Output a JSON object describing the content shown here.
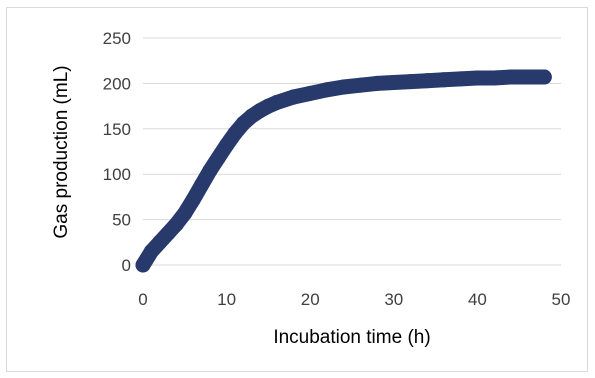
{
  "chart_data": {
    "type": "line",
    "title": "",
    "xlabel": "Incubation time (h)",
    "ylabel": "Gas production (mL)",
    "xlim": [
      0,
      50
    ],
    "ylim": [
      0,
      250
    ],
    "x_ticks": [
      "0",
      "10",
      "20",
      "30",
      "40",
      "50"
    ],
    "y_ticks": [
      "0",
      "50",
      "100",
      "150",
      "200",
      "250"
    ],
    "grid": "horizontal",
    "legend": "none",
    "series": [
      {
        "color": "#283a6b",
        "x": [
          0,
          1,
          2,
          3,
          4,
          5,
          6,
          7,
          8,
          9,
          10,
          11,
          12,
          13,
          14,
          15,
          16,
          18,
          20,
          22,
          24,
          26,
          28,
          30,
          32,
          34,
          36,
          38,
          40,
          42,
          44,
          46,
          48
        ],
        "y": [
          0,
          15,
          25,
          35,
          45,
          57,
          72,
          88,
          104,
          118,
          132,
          145,
          156,
          164,
          170,
          175,
          179,
          185,
          189,
          193,
          196,
          198,
          200,
          201,
          202,
          203,
          204,
          205,
          206,
          206,
          207,
          207,
          207
        ]
      }
    ]
  }
}
